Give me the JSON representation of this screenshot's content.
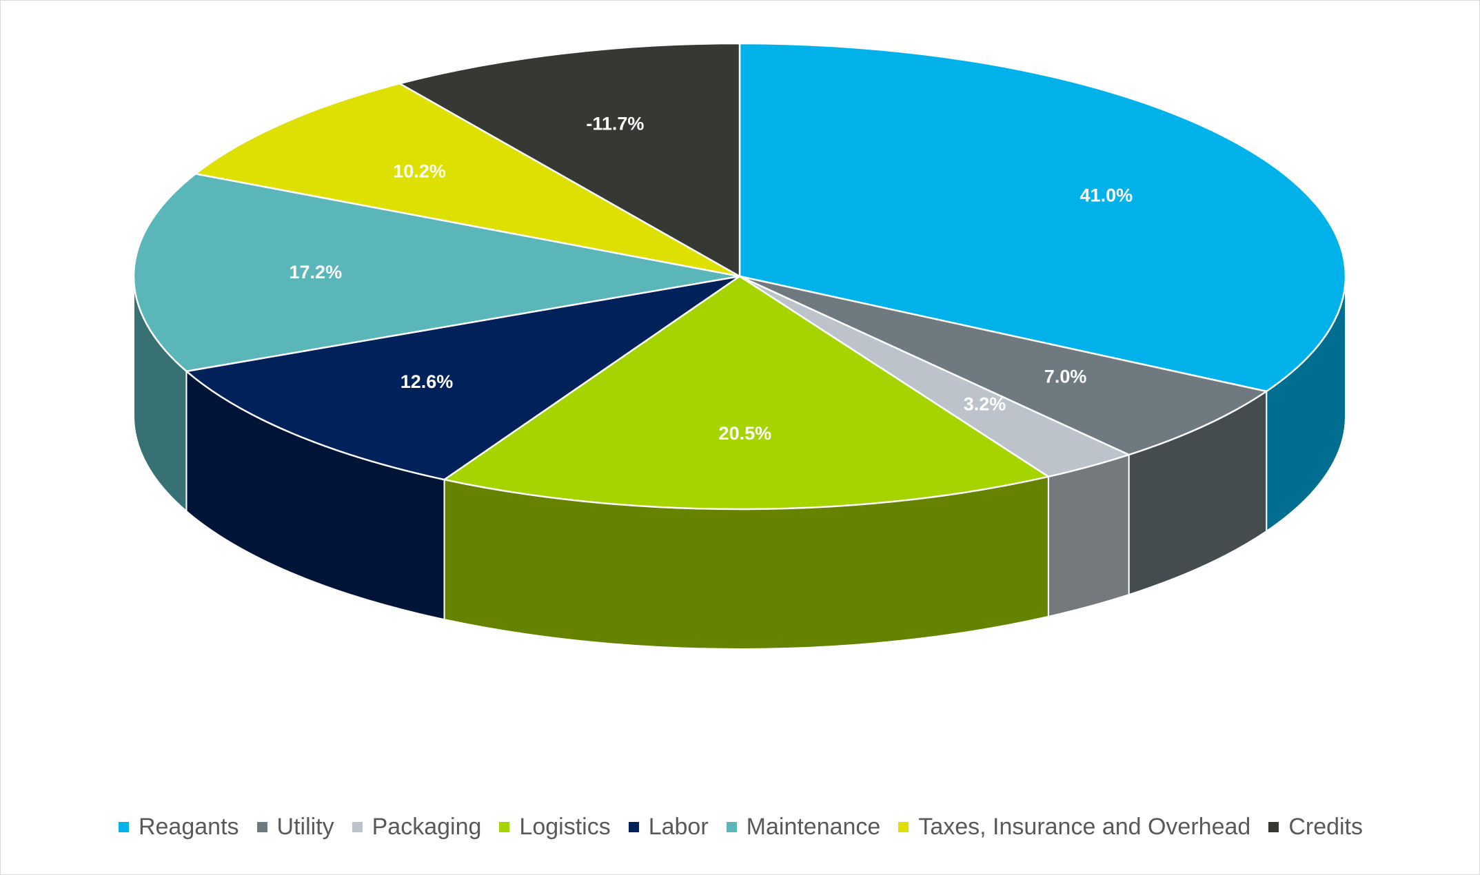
{
  "chart_data": {
    "type": "pie3d",
    "categories": [
      "Reagants",
      "Utility",
      "Packaging",
      "Logistics",
      "Labor",
      "Maintenance",
      "Taxes, Insurance and Overhead",
      "Credits"
    ],
    "values": [
      41.0,
      7.0,
      3.2,
      20.5,
      12.6,
      17.2,
      10.2,
      -11.7
    ],
    "value_labels": [
      "41.0%",
      "7.0%",
      "3.2%",
      "20.5%",
      "12.6%",
      "17.2%",
      "10.2%",
      "-11.7%"
    ],
    "colors": [
      "#00b2e9",
      "#6f7a80",
      "#bcc3cb",
      "#a5d400",
      "#00215a",
      "#5bb6b9",
      "#dde000",
      "#363833"
    ],
    "legend": "bottom"
  }
}
